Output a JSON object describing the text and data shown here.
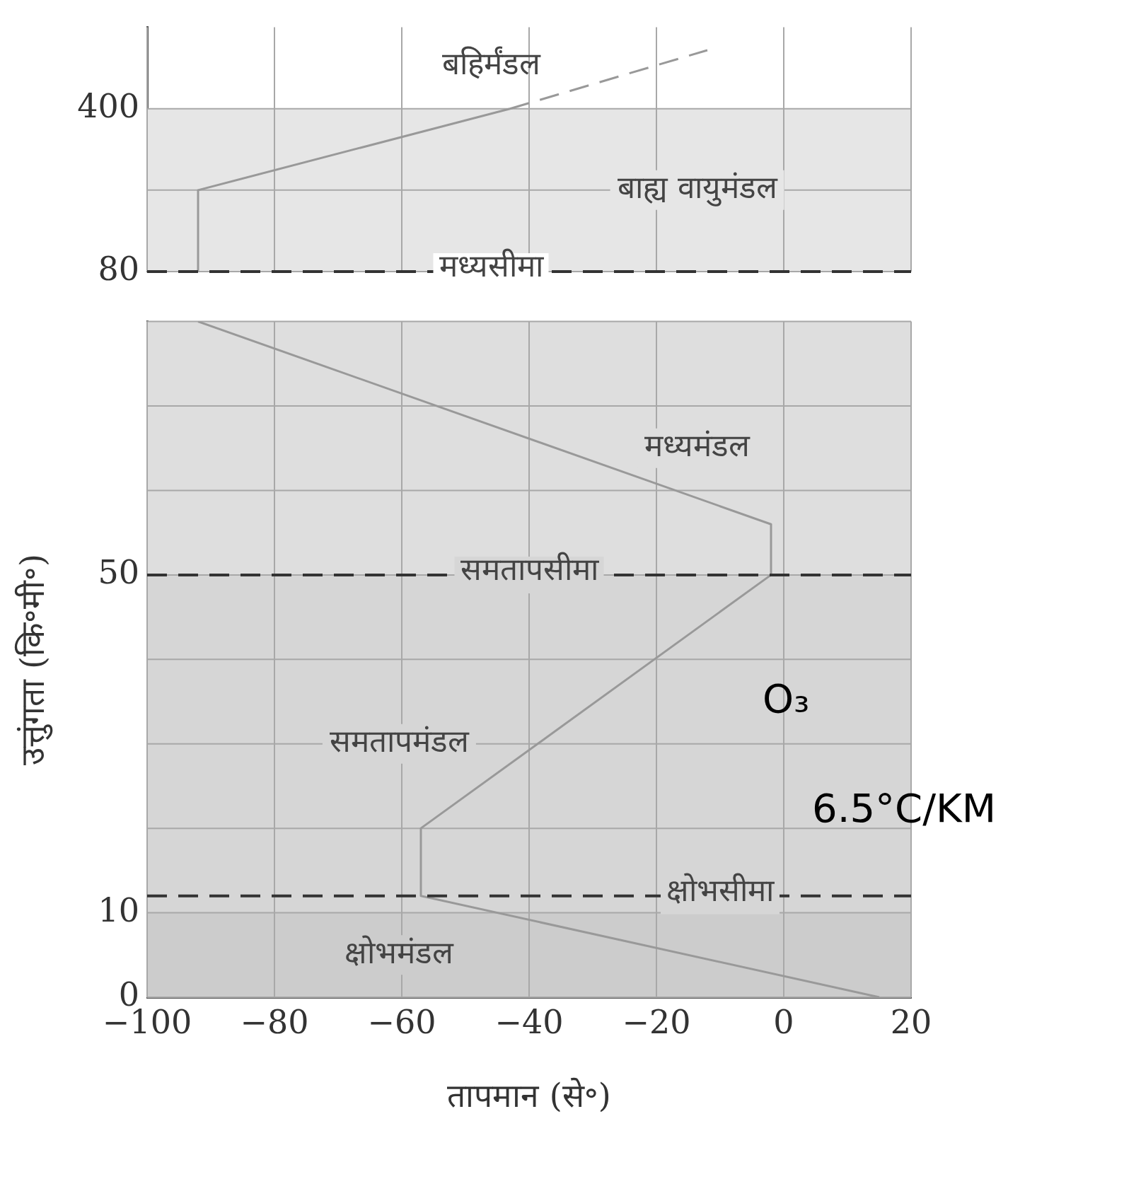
{
  "chart_data": [
    {
      "type": "line",
      "ylim": [
        80,
        560
      ],
      "xlim": [
        -100,
        20
      ],
      "xticks": [
        -100,
        -80,
        -60,
        -40,
        -20,
        0,
        20
      ],
      "yticks": [
        80,
        {
          "value": 240,
          "label": null
        },
        400
      ],
      "tick_labels": "y",
      "grid": true,
      "legend": false,
      "marker": "none",
      "series": [
        {
          "color": "#999999",
          "line_style": "solid",
          "x": [
            -92,
            -92,
            -43
          ],
          "values": [
            80,
            240,
            400
          ]
        },
        {
          "color": "#999999",
          "line_style": "dashed",
          "x": [
            -43,
            -12
          ],
          "values": [
            400,
            515
          ]
        }
      ],
      "bands": [
        {
          "axis": "y",
          "from": 80,
          "to": 400,
          "label": "बाह्य वायुमंडल",
          "color": "#e6e6e6"
        }
      ],
      "ref_lines": [
        {
          "axis": "y",
          "value": 80,
          "label": "मध्यसीमा",
          "color": "#333333",
          "line_style": "dashed"
        }
      ],
      "annotations": [
        "बहिर्मंडल"
      ]
    },
    {
      "type": "line",
      "xlabel": "तापमान (से॰)",
      "ylabel": "उत्तुंगता (कि॰मी॰)",
      "xlim": [
        -100,
        20
      ],
      "xticks": [
        -100,
        -80,
        -60,
        -40,
        -20,
        0,
        20
      ],
      "ylim": [
        0,
        80
      ],
      "yticks": [
        0,
        10,
        {
          "value": 20,
          "label": null
        },
        {
          "value": 30,
          "label": null
        },
        {
          "value": 40,
          "label": null
        },
        50,
        {
          "value": 60,
          "label": null
        },
        {
          "value": 70,
          "label": null
        },
        {
          "value": 80,
          "label": null
        }
      ],
      "grid": true,
      "legend": false,
      "marker": "none",
      "series": [
        {
          "color": "#999999",
          "line_style": "solid",
          "x": [
            15,
            -57,
            -57,
            -2,
            -2,
            -92
          ],
          "values": [
            0,
            12,
            20,
            50,
            56,
            80
          ]
        }
      ],
      "bands": [
        {
          "axis": "y",
          "from": 0,
          "to": 10,
          "label": "क्षोभमंडल",
          "color": "#cccccc"
        },
        {
          "axis": "y",
          "from": 10,
          "to": 50,
          "label": "समतापमंडल",
          "color": "#d6d6d6"
        },
        {
          "axis": "y",
          "from": 50,
          "to": 80,
          "label": "मध्यमंडल",
          "color": "#dedede"
        }
      ],
      "ref_lines": [
        {
          "axis": "y",
          "value": 12,
          "label": "क्षोभसीमा",
          "color": "#333333",
          "line_style": "dashed"
        },
        {
          "axis": "y",
          "value": 50,
          "label": "समतापसीमा",
          "color": "#333333",
          "line_style": "dashed"
        }
      ],
      "annotations": [
        "O₃",
        "6.5°C/KM"
      ]
    }
  ]
}
